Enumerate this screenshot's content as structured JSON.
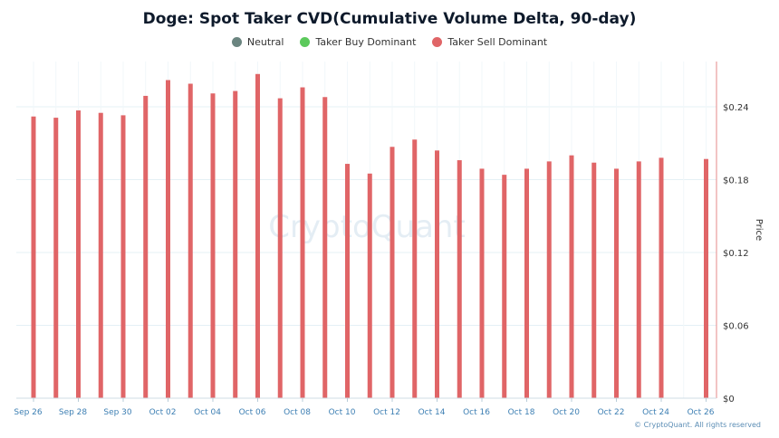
{
  "chart_data": {
    "type": "bar",
    "title": "Doge: Spot Taker CVD(Cumulative Volume Delta, 90-day)",
    "ylabel": "Price",
    "ylim": [
      0,
      0.28
    ],
    "yticks": [
      "$0",
      "$0.06",
      "$0.12",
      "$0.18",
      "$0.24"
    ],
    "ytick_values": [
      0,
      0.06,
      0.12,
      0.18,
      0.24
    ],
    "grid": true,
    "legend_position": "top",
    "legend": [
      {
        "name": "Neutral",
        "color": "#6b8580"
      },
      {
        "name": "Taker Buy Dominant",
        "color": "#5cc95c"
      },
      {
        "name": "Taker Sell Dominant",
        "color": "#e06567"
      }
    ],
    "x_tick_labels": [
      "Sep 26",
      "Sep 28",
      "Sep 30",
      "Oct 02",
      "Oct 04",
      "Oct 06",
      "Oct 08",
      "Oct 10",
      "Oct 12",
      "Oct 14",
      "Oct 16",
      "Oct 18",
      "Oct 20",
      "Oct 22",
      "Oct 24",
      "Oct 26"
    ],
    "categories": [
      "Sep 26",
      "Sep 27",
      "Sep 28",
      "Sep 29",
      "Sep 30",
      "Oct 01",
      "Oct 02",
      "Oct 03",
      "Oct 04",
      "Oct 05",
      "Oct 06",
      "Oct 07",
      "Oct 08",
      "Oct 09",
      "Oct 10",
      "Oct 11",
      "Oct 12",
      "Oct 13",
      "Oct 14",
      "Oct 15",
      "Oct 16",
      "Oct 17",
      "Oct 18",
      "Oct 19",
      "Oct 20",
      "Oct 21",
      "Oct 22",
      "Oct 23",
      "Oct 24",
      "Oct 25",
      "Oct 26"
    ],
    "series": [
      {
        "name": "Taker Sell Dominant",
        "color": "#e06567",
        "values": [
          0.232,
          0.231,
          0.237,
          0.235,
          0.233,
          0.249,
          0.262,
          0.259,
          0.251,
          0.253,
          0.267,
          0.247,
          0.256,
          0.248,
          0.193,
          0.185,
          0.207,
          0.213,
          0.204,
          0.196,
          0.189,
          0.184,
          0.189,
          0.195,
          0.2,
          0.194,
          0.189,
          0.195,
          0.198,
          null,
          0.197
        ]
      }
    ]
  },
  "watermark": "CryptoQuant",
  "copyright": "© CryptoQuant. All rights reserved"
}
